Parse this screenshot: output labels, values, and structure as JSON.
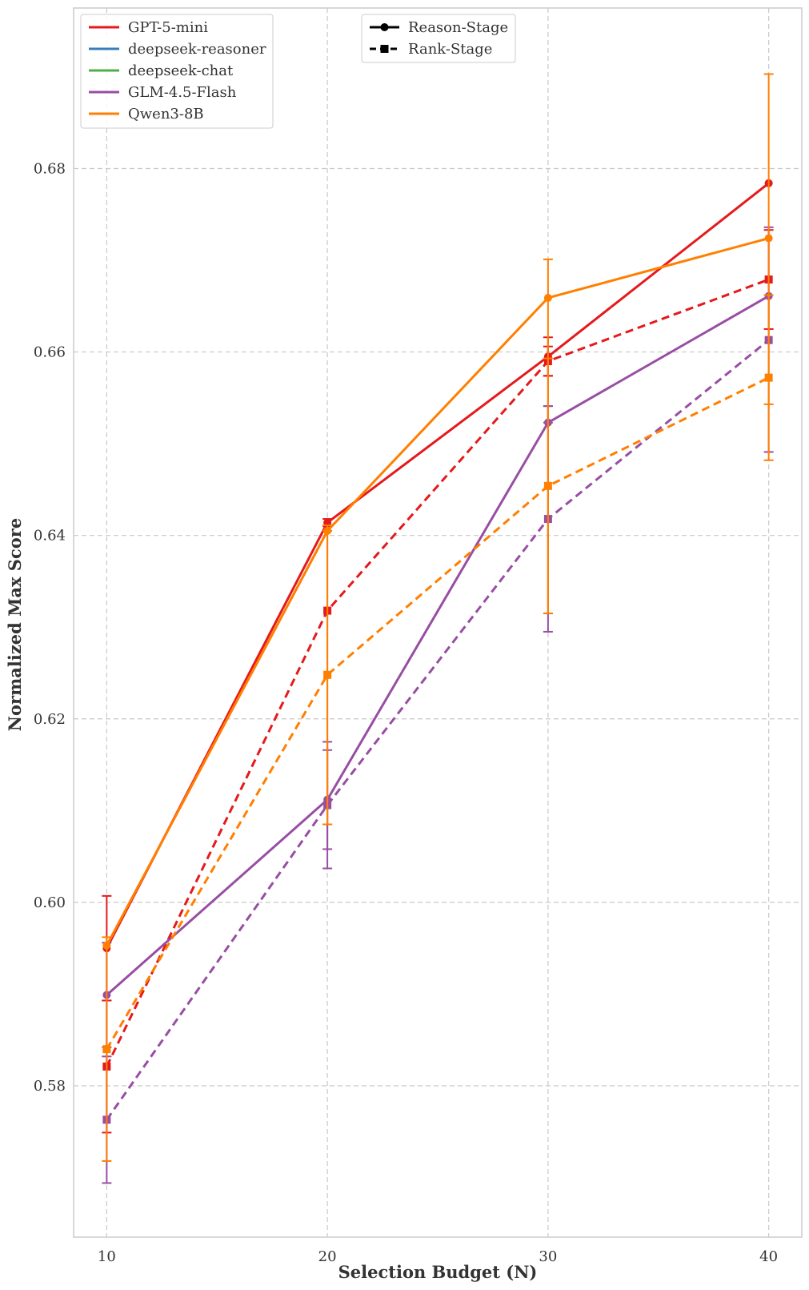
{
  "chart_data": {
    "type": "line",
    "title": "",
    "xlabel": "Selection Budget (N)",
    "ylabel": "Normalized Max Score",
    "x": [
      10,
      20,
      30,
      40
    ],
    "x_ticks": [
      "10",
      "20",
      "30",
      "40"
    ],
    "xlim": [
      8.5,
      41.5
    ],
    "y_ticks": [
      "0.58",
      "0.60",
      "0.62",
      "0.64",
      "0.66",
      "0.68"
    ],
    "ylim": [
      0.5635,
      0.6975
    ],
    "grid": true,
    "legend_models": {
      "placement": "top-left",
      "entries": [
        {
          "name": "GPT-5-mini",
          "color": "#e41a1c"
        },
        {
          "name": "deepseek-reasoner",
          "color": "#377eb8"
        },
        {
          "name": "deepseek-chat",
          "color": "#4daf4a"
        },
        {
          "name": "GLM-4.5-Flash",
          "color": "#984ea3"
        },
        {
          "name": "Qwen3-8B",
          "color": "#ff7f00"
        }
      ]
    },
    "legend_stages": {
      "placement": "top-center",
      "entries": [
        {
          "name": "Reason-Stage",
          "style": "solid",
          "marker": "circle",
          "color": "#000000"
        },
        {
          "name": "Rank-Stage",
          "style": "dashed",
          "marker": "square",
          "color": "#000000"
        }
      ]
    },
    "series": [
      {
        "model": "GPT-5-mini",
        "stage": "Reason-Stage",
        "color": "#e41a1c",
        "style": "solid",
        "marker": "circle",
        "values": [
          0.595,
          0.6414,
          0.6595,
          0.6784
        ],
        "err_low": [
          0.5893,
          0.641,
          0.6574,
          0.6784
        ],
        "err_high": [
          0.6007,
          0.6418,
          0.6616,
          0.6784
        ]
      },
      {
        "model": "GPT-5-mini",
        "stage": "Rank-Stage",
        "color": "#e41a1c",
        "style": "dashed",
        "marker": "square",
        "values": [
          0.5821,
          0.6318,
          0.659,
          0.6679
        ],
        "err_low": [
          0.5749,
          0.6318,
          0.6574,
          0.6625
        ],
        "err_high": [
          0.5893,
          0.6318,
          0.6606,
          0.6733
        ]
      },
      {
        "model": "GLM-4.5-Flash",
        "stage": "Reason-Stage",
        "color": "#984ea3",
        "style": "solid",
        "marker": "circle",
        "values": [
          0.5899,
          0.6112,
          0.6523,
          0.6661
        ],
        "err_low": [
          0.5842,
          0.6058,
          0.6523,
          0.6661
        ],
        "err_high": [
          0.5956,
          0.6166,
          0.6541,
          0.6661
        ]
      },
      {
        "model": "GLM-4.5-Flash",
        "stage": "Rank-Stage",
        "color": "#984ea3",
        "style": "dashed",
        "marker": "square",
        "values": [
          0.5763,
          0.6106,
          0.6418,
          0.6613
        ],
        "err_low": [
          0.5694,
          0.6037,
          0.6295,
          0.6491
        ],
        "err_high": [
          0.5832,
          0.6175,
          0.6541,
          0.6736
        ]
      },
      {
        "model": "Qwen3-8B",
        "stage": "Reason-Stage",
        "color": "#ff7f00",
        "style": "solid",
        "marker": "circle",
        "values": [
          0.5953,
          0.6405,
          0.6659,
          0.6724
        ],
        "err_low": [
          0.5953,
          0.6085,
          0.6315,
          0.6543
        ],
        "err_high": [
          0.5953,
          0.6405,
          0.6701,
          0.6903
        ]
      },
      {
        "model": "Qwen3-8B",
        "stage": "Rank-Stage",
        "color": "#ff7f00",
        "style": "dashed",
        "marker": "square",
        "values": [
          0.584,
          0.6248,
          0.6454,
          0.6572
        ],
        "err_low": [
          0.5718,
          0.6085,
          0.6315,
          0.6482
        ],
        "err_high": [
          0.5962,
          0.6411,
          0.6593,
          0.6662
        ]
      }
    ]
  }
}
